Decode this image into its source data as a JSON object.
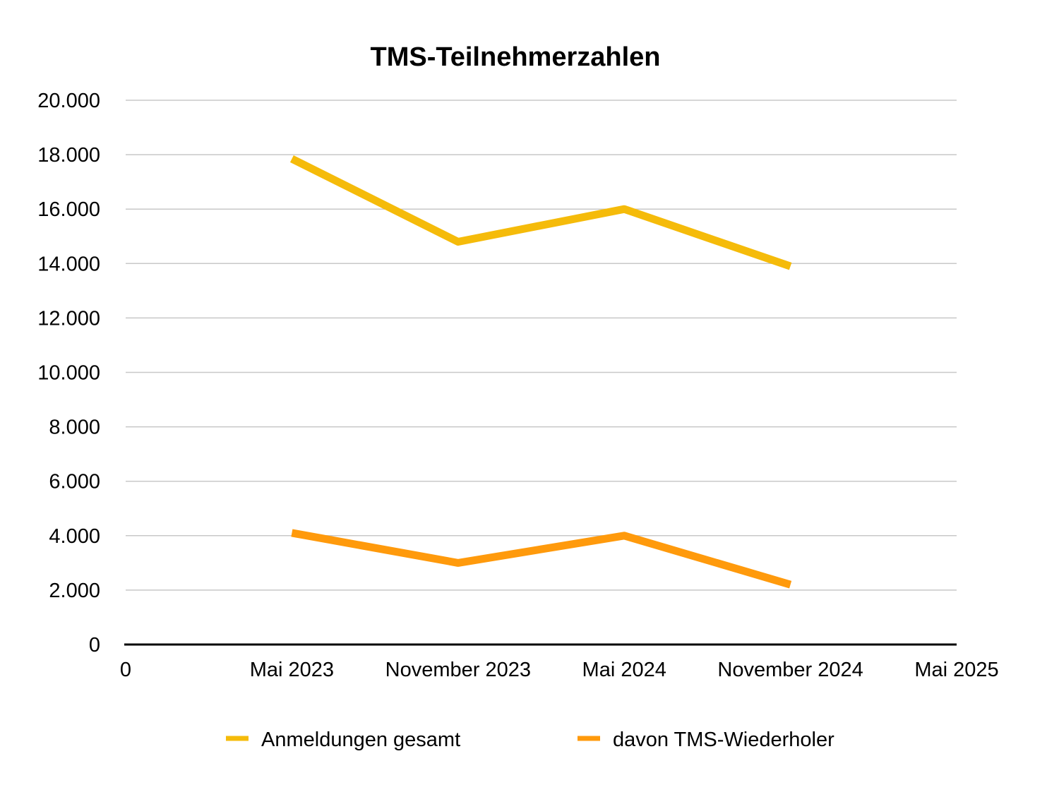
{
  "chart_data": {
    "type": "line",
    "title": "TMS-Teilnehmerzahlen",
    "xlabel": "",
    "ylabel": "",
    "categories": [
      "0",
      "Mai 2023",
      "November 2023",
      "Mai 2024",
      "November 2024",
      "Mai 2025"
    ],
    "x_tick_labels": [
      "0",
      "Mai 2023",
      "November 2023",
      "Mai 2024",
      "November 2024",
      "Mai 2025"
    ],
    "y_tick_labels": [
      "0",
      "2.000",
      "4.000",
      "6.000",
      "8.000",
      "10.000",
      "12.000",
      "14.000",
      "16.000",
      "18.000",
      "20.000"
    ],
    "y_ticks": [
      0,
      2000,
      4000,
      6000,
      8000,
      10000,
      12000,
      14000,
      16000,
      18000,
      20000
    ],
    "ylim": [
      0,
      20000
    ],
    "grid": true,
    "legend_position": "bottom",
    "series": [
      {
        "name": "Anmeldungen gesamt",
        "color": "#F5BB0A",
        "values": [
          null,
          17850,
          14800,
          16000,
          13900,
          null
        ]
      },
      {
        "name": "davon TMS-Wiederholer",
        "color": "#FF9A0C",
        "values": [
          null,
          4100,
          3000,
          4000,
          2200,
          null
        ]
      }
    ]
  }
}
